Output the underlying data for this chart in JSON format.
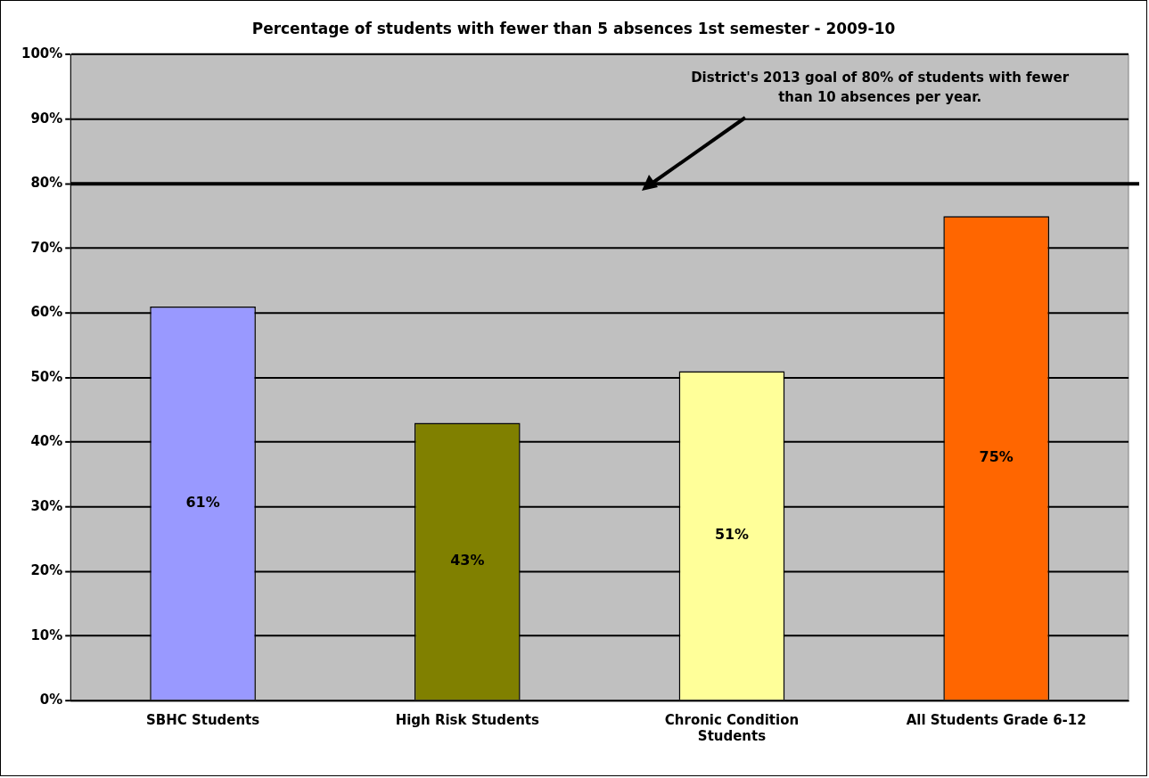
{
  "chart_data": {
    "type": "bar",
    "title": "Percentage of students with fewer than 5 absences 1st semester - 2009-10",
    "categories": [
      "SBHC Students",
      "High Risk Students",
      "Chronic Condition Students",
      "All Students Grade 6-12"
    ],
    "values": [
      61,
      43,
      51,
      75
    ],
    "colors": [
      "#9999ff",
      "#808000",
      "#ffff99",
      "#ff6600"
    ],
    "ylim": [
      0,
      100
    ],
    "yticks": [
      {
        "value": 0,
        "label": "0%"
      },
      {
        "value": 10,
        "label": "10%"
      },
      {
        "value": 20,
        "label": "20%"
      },
      {
        "value": 30,
        "label": "30%"
      },
      {
        "value": 40,
        "label": "40%"
      },
      {
        "value": 50,
        "label": "50%"
      },
      {
        "value": 60,
        "label": "60%"
      },
      {
        "value": 70,
        "label": "70%"
      },
      {
        "value": 80,
        "label": "80%"
      },
      {
        "value": 90,
        "label": "90%"
      },
      {
        "value": 100,
        "label": "100%"
      }
    ],
    "value_labels": [
      "61%",
      "43%",
      "51%",
      "75%"
    ],
    "grid": "y",
    "legend": false,
    "ref_lines": [
      {
        "axis": "y",
        "value": 80,
        "label": "District's 2013 goal of 80% of students with fewer than 10 absences per year.",
        "color": "#000000"
      }
    ]
  }
}
